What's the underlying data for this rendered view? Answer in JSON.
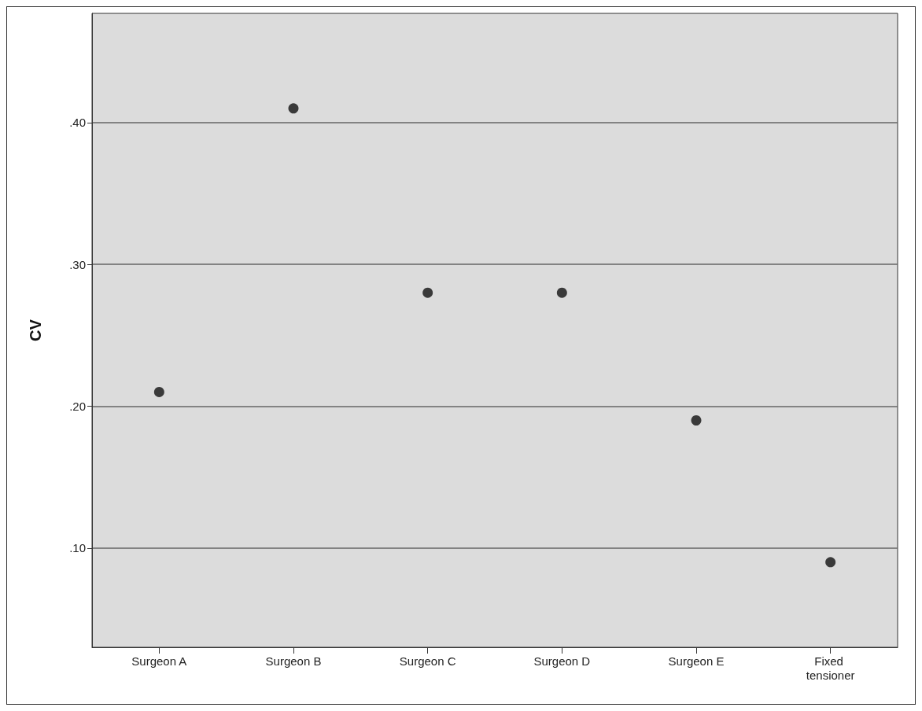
{
  "chart_data": {
    "type": "scatter",
    "ylabel": "CV",
    "categories": [
      "Surgeon A",
      "Surgeon B",
      "Surgeon C",
      "Surgeon D",
      "Surgeon E",
      "Fixed tensioner"
    ],
    "series": [
      {
        "color": "#111111",
        "values": [
          0.21,
          0.41,
          0.28,
          0.28,
          0.19,
          0.09
        ]
      }
    ],
    "ylim": [
      0.03,
      0.477
    ],
    "yticks": [
      {
        "value": 0.1,
        "label": ".10"
      },
      {
        "value": 0.2,
        "label": ".20"
      },
      {
        "value": 0.3,
        "label": ".30"
      },
      {
        "value": 0.4,
        "label": ".40"
      }
    ],
    "grid": "y",
    "marker": "circle"
  }
}
